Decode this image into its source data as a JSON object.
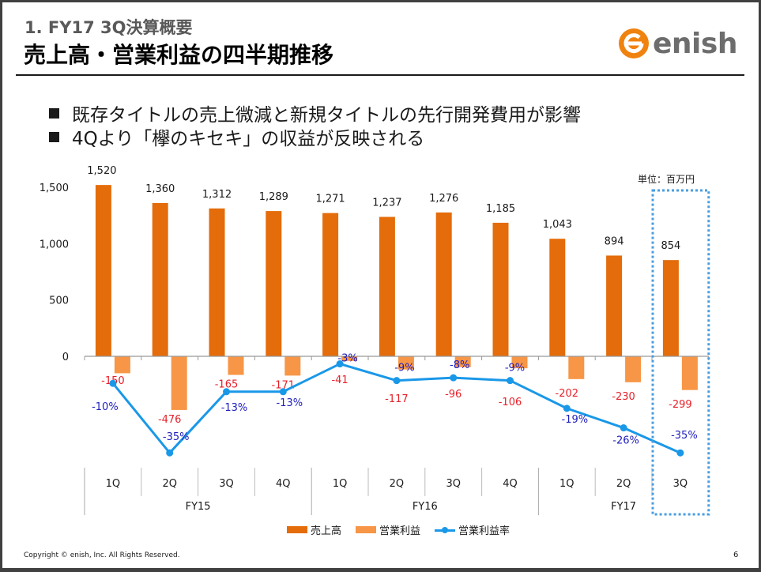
{
  "header": {
    "subtitle": "1. FY17 3Q決算概要",
    "title": "売上高・営業利益の四半期推移",
    "logo_text": "enish"
  },
  "bullets": [
    "既存タイトルの売上微減と新規タイトルの先行開発費用が影響",
    "4Qより「欅のキセキ」の収益が反映される"
  ],
  "unit_label": "単位：百万円",
  "colors": {
    "revenue": "#e46c0a",
    "operating_profit": "#f79646",
    "margin_line": "#1a98e8",
    "profit_label": "#e8202a",
    "margin_label": "#2020c0",
    "highlight_box": "#4a9de0"
  },
  "chart_data": {
    "type": "bar",
    "title": "売上高・営業利益の四半期推移",
    "unit": "百万円",
    "categories": [
      "1Q",
      "2Q",
      "3Q",
      "4Q",
      "1Q",
      "2Q",
      "3Q",
      "4Q",
      "1Q",
      "2Q",
      "3Q"
    ],
    "groups": [
      {
        "label": "FY15",
        "count": 4
      },
      {
        "label": "FY16",
        "count": 4
      },
      {
        "label": "FY17",
        "count": 3
      }
    ],
    "series": [
      {
        "name": "売上高",
        "type": "bar",
        "values": [
          1520,
          1360,
          1312,
          1289,
          1271,
          1237,
          1276,
          1185,
          1043,
          894,
          854
        ],
        "labels": [
          "1,520",
          "1,360",
          "1,312",
          "1,289",
          "1,271",
          "1,237",
          "1,276",
          "1,185",
          "1,043",
          "894",
          "854"
        ]
      },
      {
        "name": "営業利益",
        "type": "bar",
        "values": [
          -150,
          -476,
          -165,
          -171,
          -41,
          -117,
          -96,
          -106,
          -202,
          -230,
          -299
        ],
        "labels": [
          "-150",
          "-476",
          "-165",
          "-171",
          "-41",
          "-117",
          "-96",
          "-106",
          "-202",
          "-230",
          "-299"
        ]
      },
      {
        "name": "営業利益率",
        "type": "line",
        "unit": "%",
        "values": [
          -10,
          -35,
          -13,
          -13,
          -3,
          -9,
          -8,
          -9,
          -19,
          -26,
          -35
        ],
        "labels": [
          "-10%",
          "-35%",
          "-13%",
          "-13%",
          "-3%",
          "-9%",
          "-8%",
          "-9%",
          "-19%",
          "-26%",
          "-35%"
        ]
      }
    ],
    "yticks": [
      0,
      500,
      1000,
      1500
    ],
    "ytick_labels": [
      "0",
      "500",
      "1,000",
      "1,500"
    ],
    "highlight_category_index": 10,
    "legend": [
      "売上高",
      "営業利益",
      "営業利益率"
    ],
    "legend_position": "bottom",
    "grid": false
  },
  "footer": {
    "copyright": "Copyright © enish, Inc. All Rights Reserved.",
    "page": "6"
  }
}
